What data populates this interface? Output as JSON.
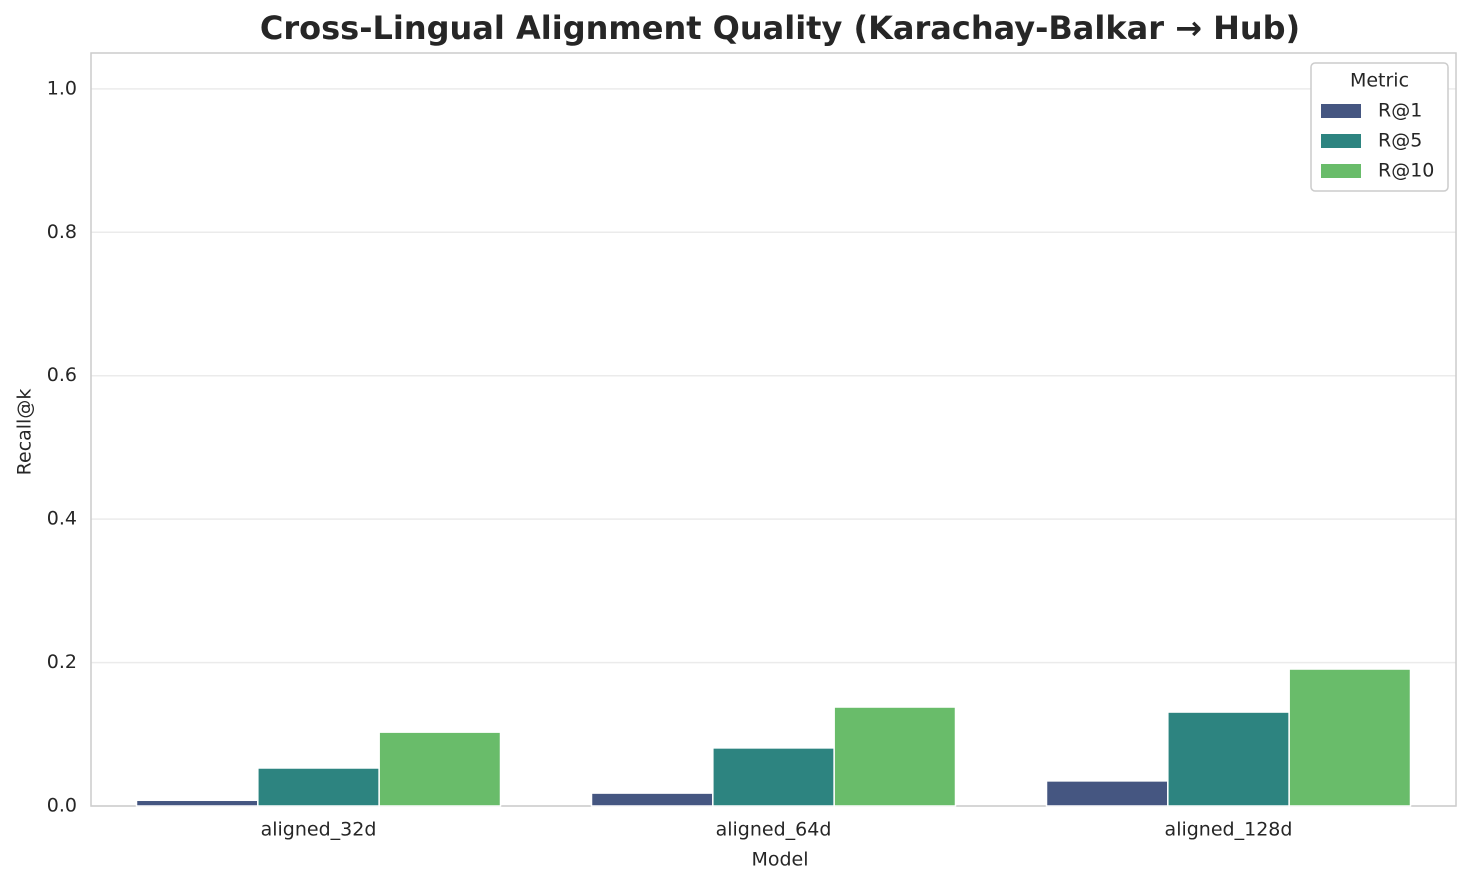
{
  "chart_data": {
    "type": "bar",
    "title": "Cross-Lingual Alignment Quality (Karachay-Balkar → Hub)",
    "x_label": "Model",
    "y_label": "Recall@k",
    "categories": [
      "aligned_32d",
      "aligned_64d",
      "aligned_128d"
    ],
    "series": [
      {
        "name": "R@1",
        "color": "#455681",
        "values": [
          0.008,
          0.018,
          0.035
        ]
      },
      {
        "name": "R@5",
        "color": "#2d8480",
        "values": [
          0.053,
          0.081,
          0.131
        ]
      },
      {
        "name": "R@10",
        "color": "#69bc6a",
        "values": [
          0.103,
          0.138,
          0.191
        ]
      }
    ],
    "legend_title": "Metric",
    "legend": "upper right",
    "ylim": [
      0,
      1.05
    ],
    "yticks": [
      {
        "value": 0,
        "label": "0.0"
      },
      0.2,
      0.4,
      0.6,
      0.8,
      {
        "value": 1,
        "label": "1.0"
      }
    ],
    "grid": true
  }
}
